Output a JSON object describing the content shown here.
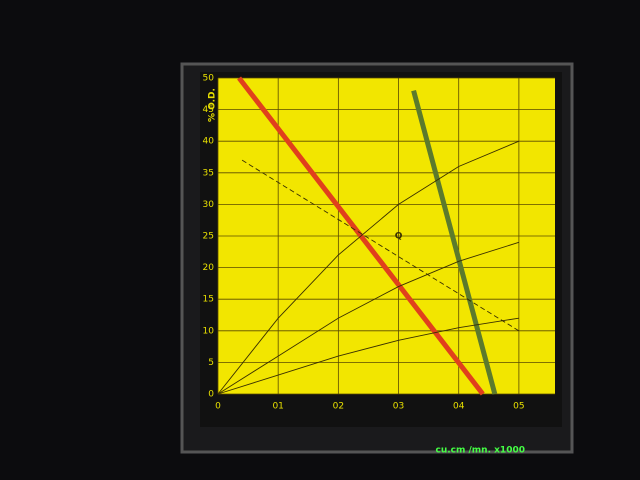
{
  "chart_data": {
    "type": "line",
    "ylabel": "% O.D.",
    "xlabel": "cu.cm /mn. x1000",
    "xlim": [
      0,
      0.56
    ],
    "ylim": [
      0,
      50
    ],
    "xticks": [
      0,
      {
        "value": 0.1,
        "label": "01"
      },
      {
        "value": 0.2,
        "label": "02"
      },
      {
        "value": 0.3,
        "label": "03"
      },
      {
        "value": 0.4,
        "label": "04"
      },
      {
        "value": 0.5,
        "label": "05"
      }
    ],
    "yticks": [
      0,
      5,
      10,
      15,
      20,
      25,
      30,
      35,
      40,
      45,
      50
    ],
    "grid": true,
    "series": [
      {
        "color": "#e0401c",
        "x": [
          0.035,
          0.44
        ],
        "values": [
          50,
          0
        ]
      },
      {
        "color": "#5c7a2c",
        "x": [
          0.325,
          0.46
        ],
        "values": [
          48,
          0
        ]
      },
      {
        "color": "#3a3000",
        "dash": true,
        "x": [
          0.04,
          0.5
        ],
        "values": [
          37,
          10
        ]
      },
      {
        "color": "#3a3000",
        "x": [
          0,
          0.1,
          0.2,
          0.3,
          0.4,
          0.5
        ],
        "values": [
          0,
          12,
          22,
          30,
          36,
          40
        ]
      },
      {
        "color": "#3a3000",
        "x": [
          0,
          0.1,
          0.2,
          0.3,
          0.4,
          0.5
        ],
        "values": [
          0,
          6,
          12,
          17,
          21,
          24
        ]
      },
      {
        "color": "#3a3000",
        "x": [
          0,
          0.1,
          0.2,
          0.3,
          0.4,
          0.5
        ],
        "values": [
          0,
          3,
          6,
          8.5,
          10.5,
          12
        ]
      }
    ],
    "annotations": [
      {
        "text": "Q",
        "x": 0.3,
        "y": 25
      }
    ]
  }
}
